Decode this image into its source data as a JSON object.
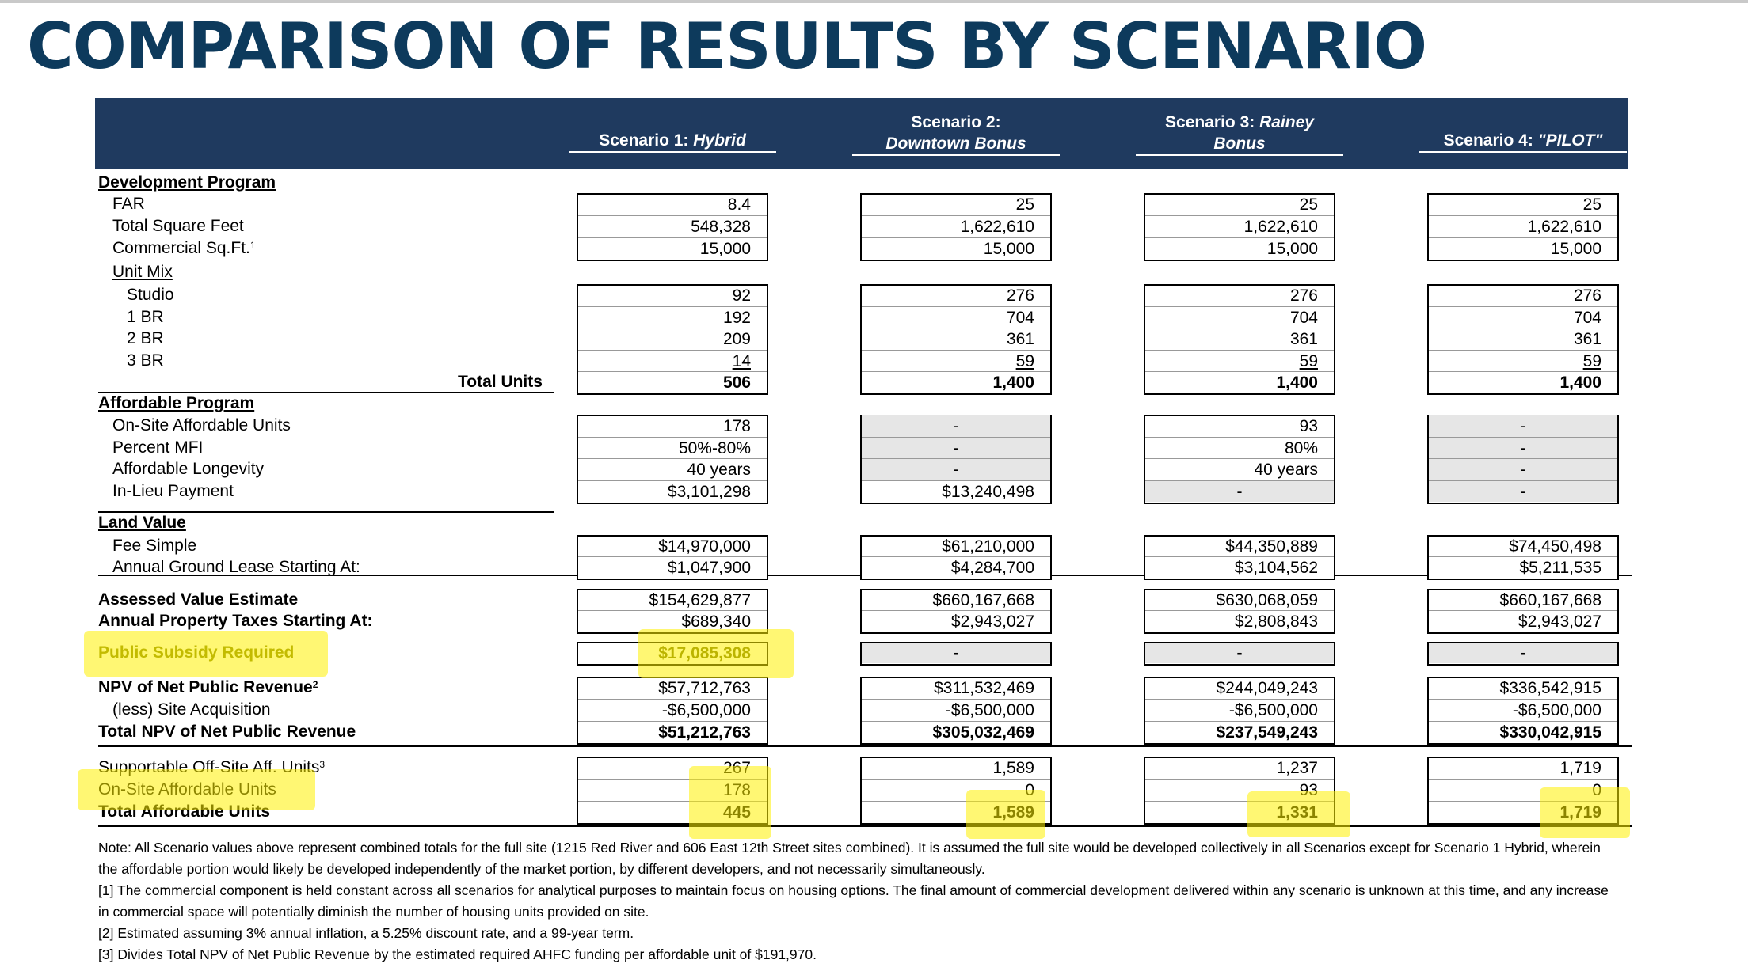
{
  "title": "COMPARISON OF RESULTS BY SCENARIO",
  "scenarios": [
    {
      "line1": "",
      "line2_pre": "Scenario 1: ",
      "line2_em": "Hybrid"
    },
    {
      "line1": "Scenario 2:",
      "line2_pre": "",
      "line2_em": "Downtown Bonus"
    },
    {
      "line1_pre": "Scenario 3: ",
      "line1_em": "Rainey",
      "line2_pre": "",
      "line2_em": "Bonus"
    },
    {
      "line1": "",
      "line2_pre": "Scenario 4: ",
      "line2_em": "\"PILOT\""
    }
  ],
  "sections": {
    "development": "Development Program",
    "unit_mix": "Unit Mix",
    "affordable": "Affordable Program",
    "land": "Land Value"
  },
  "labels": {
    "far": "FAR",
    "tsf": "Total Square Feet",
    "comm": "Commercial Sq.Ft.",
    "comm_sup": "1",
    "studio": "Studio",
    "br1": "1 BR",
    "br2": "2 BR",
    "br3": "3 BR",
    "total_units": "Total Units",
    "onsite": "On-Site Affordable Units",
    "mfi": "Percent MFI",
    "longevity": "Affordable Longevity",
    "inlieu": "In-Lieu Payment",
    "fee": "Fee Simple",
    "ground": "Annual Ground Lease Starting At:",
    "assessed": "Assessed Value Estimate",
    "taxes": "Annual Property Taxes Starting At:",
    "subsidy": "Public Subsidy Required",
    "npv": "NPV of Net Public Revenue",
    "npv_sup": "2",
    "less": "(less) Site Acquisition",
    "total_npv": "Total NPV of Net Public Revenue",
    "offsite": "Supportable Off-Site Aff. Units",
    "offsite_sup": "3",
    "onsite2": "On-Site Affordable Units",
    "total_aff": "Total Affordable Units"
  },
  "values": {
    "far": [
      "8.4",
      "25",
      "25",
      "25"
    ],
    "tsf": [
      "548,328",
      "1,622,610",
      "1,622,610",
      "1,622,610"
    ],
    "comm": [
      "15,000",
      "15,000",
      "15,000",
      "15,000"
    ],
    "studio": [
      "92",
      "276",
      "276",
      "276"
    ],
    "br1": [
      "192",
      "704",
      "704",
      "704"
    ],
    "br2": [
      "209",
      "361",
      "361",
      "361"
    ],
    "br3": [
      "14",
      "59",
      "59",
      "59"
    ],
    "total_units": [
      "506",
      "1,400",
      "1,400",
      "1,400"
    ],
    "onsite": [
      "178",
      "-",
      "93",
      "-"
    ],
    "mfi": [
      "50%-80%",
      "-",
      "80%",
      "-"
    ],
    "longevity": [
      "40 years",
      "-",
      "40 years",
      "-"
    ],
    "inlieu": [
      "$3,101,298",
      "$13,240,498",
      "-",
      "-"
    ],
    "fee": [
      "$14,970,000",
      "$61,210,000",
      "$44,350,889",
      "$74,450,498"
    ],
    "ground": [
      "$1,047,900",
      "$4,284,700",
      "$3,104,562",
      "$5,211,535"
    ],
    "assessed": [
      "$154,629,877",
      "$660,167,668",
      "$630,068,059",
      "$660,167,668"
    ],
    "taxes": [
      "$689,340",
      "$2,943,027",
      "$2,808,843",
      "$2,943,027"
    ],
    "subsidy": [
      "$17,085,308",
      "-",
      "-",
      "-"
    ],
    "npv": [
      "$57,712,763",
      "$311,532,469",
      "$244,049,243",
      "$336,542,915"
    ],
    "less": [
      "-$6,500,000",
      "-$6,500,000",
      "-$6,500,000",
      "-$6,500,000"
    ],
    "total_npv": [
      "$51,212,763",
      "$305,032,469",
      "$237,549,243",
      "$330,042,915"
    ],
    "offsite": [
      "267",
      "1,589",
      "1,237",
      "1,719"
    ],
    "onsite2": [
      "178",
      "0",
      "93",
      "0"
    ],
    "total_aff": [
      "445",
      "1,589",
      "1,331",
      "1,719"
    ]
  },
  "notes": [
    "Note: All Scenario values above represent combined totals for the full site (1215 Red River and 606 East 12th Street sites combined). It is assumed the full site would be developed collectively in all Scenarios except for Scenario 1 Hybrid, wherein the affordable portion would likely be developed independently of the market portion, by different developers, and not necessarily simultaneously.",
    "[1] The commercial component is held constant across all scenarios for analytical purposes to maintain focus on housing options. The final amount of commercial development delivered within any scenario is unknown at this time, and any increase in commercial space will potentially diminish the number of housing units provided on site.",
    "[2] Estimated assuming 3% annual inflation, a 5.25% discount rate, and a 99-year term.",
    "[3] Divides Total NPV of Net Public Revenue by the estimated required AHFC funding per affordable unit of $191,970."
  ],
  "colors": {
    "title": "#0d3a5c",
    "header_band": "#1f3a5f",
    "highlight": "#fff000",
    "grey_cell": "#e6e6e6"
  }
}
